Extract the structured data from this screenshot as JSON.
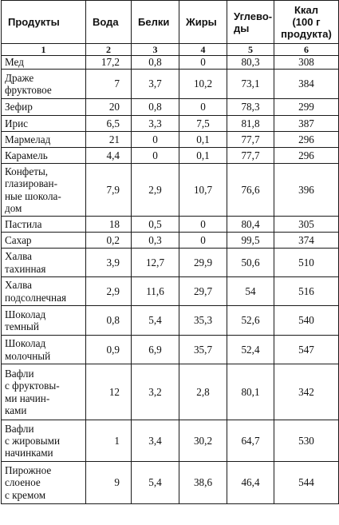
{
  "table": {
    "headers": [
      "Продукты",
      "Вода",
      "Белки",
      "Жиры",
      "Углево-\nды",
      "Ккал\n(100 г\nпродукта)"
    ],
    "column_numbers": [
      "1",
      "2",
      "3",
      "4",
      "5",
      "6"
    ],
    "rows": [
      {
        "name": "Мед",
        "values": [
          "17,2",
          "0,8",
          "0",
          "80,3",
          "308"
        ]
      },
      {
        "name": "Драже\nфруктовое",
        "values": [
          "7",
          "3,7",
          "10,2",
          "73,1",
          "384"
        ]
      },
      {
        "name": "Зефир",
        "values": [
          "20",
          "0,8",
          "0",
          "78,3",
          "299"
        ]
      },
      {
        "name": "Ирис",
        "values": [
          "6,5",
          "3,3",
          "7,5",
          "81,8",
          "387"
        ]
      },
      {
        "name": "Мармелад",
        "values": [
          "21",
          "0",
          "0,1",
          "77,7",
          "296"
        ]
      },
      {
        "name": "Карамель",
        "values": [
          "4,4",
          "0",
          "0,1",
          "77,7",
          "296"
        ]
      },
      {
        "name": "Конфеты,\nглазирован-\nные шоколa-\nдом",
        "values": [
          "7,9",
          "2,9",
          "10,7",
          "76,6",
          "396"
        ]
      },
      {
        "name": "Пастила",
        "values": [
          "18",
          "0,5",
          "0",
          "80,4",
          "305"
        ]
      },
      {
        "name": "Сахар",
        "values": [
          "0,2",
          "0,3",
          "0",
          "99,5",
          "374"
        ]
      },
      {
        "name": "Халва\nтахинная",
        "values": [
          "3,9",
          "12,7",
          "29,9",
          "50,6",
          "510"
        ]
      },
      {
        "name": "Халва\nподсолнечная",
        "values": [
          "2,9",
          "11,6",
          "29,7",
          "54",
          "516"
        ]
      },
      {
        "name": "Шоколад\nтемный",
        "values": [
          "0,8",
          "5,4",
          "35,3",
          "52,6",
          "540"
        ]
      },
      {
        "name": "Шоколад\nмолочный",
        "values": [
          "0,9",
          "6,9",
          "35,7",
          "52,4",
          "547"
        ]
      },
      {
        "name": "Вафли\nс фруктовы-\nми начин-\nками",
        "values": [
          "12",
          "3,2",
          "2,8",
          "80,1",
          "342"
        ]
      },
      {
        "name": "Вафли\nс жировыми\nначинками",
        "values": [
          "1",
          "3,4",
          "30,2",
          "64,7",
          "530"
        ]
      },
      {
        "name": "Пирожное\nслоеное\nс кремом",
        "values": [
          "9",
          "5,4",
          "38,6",
          "46,4",
          "544"
        ]
      }
    ]
  }
}
